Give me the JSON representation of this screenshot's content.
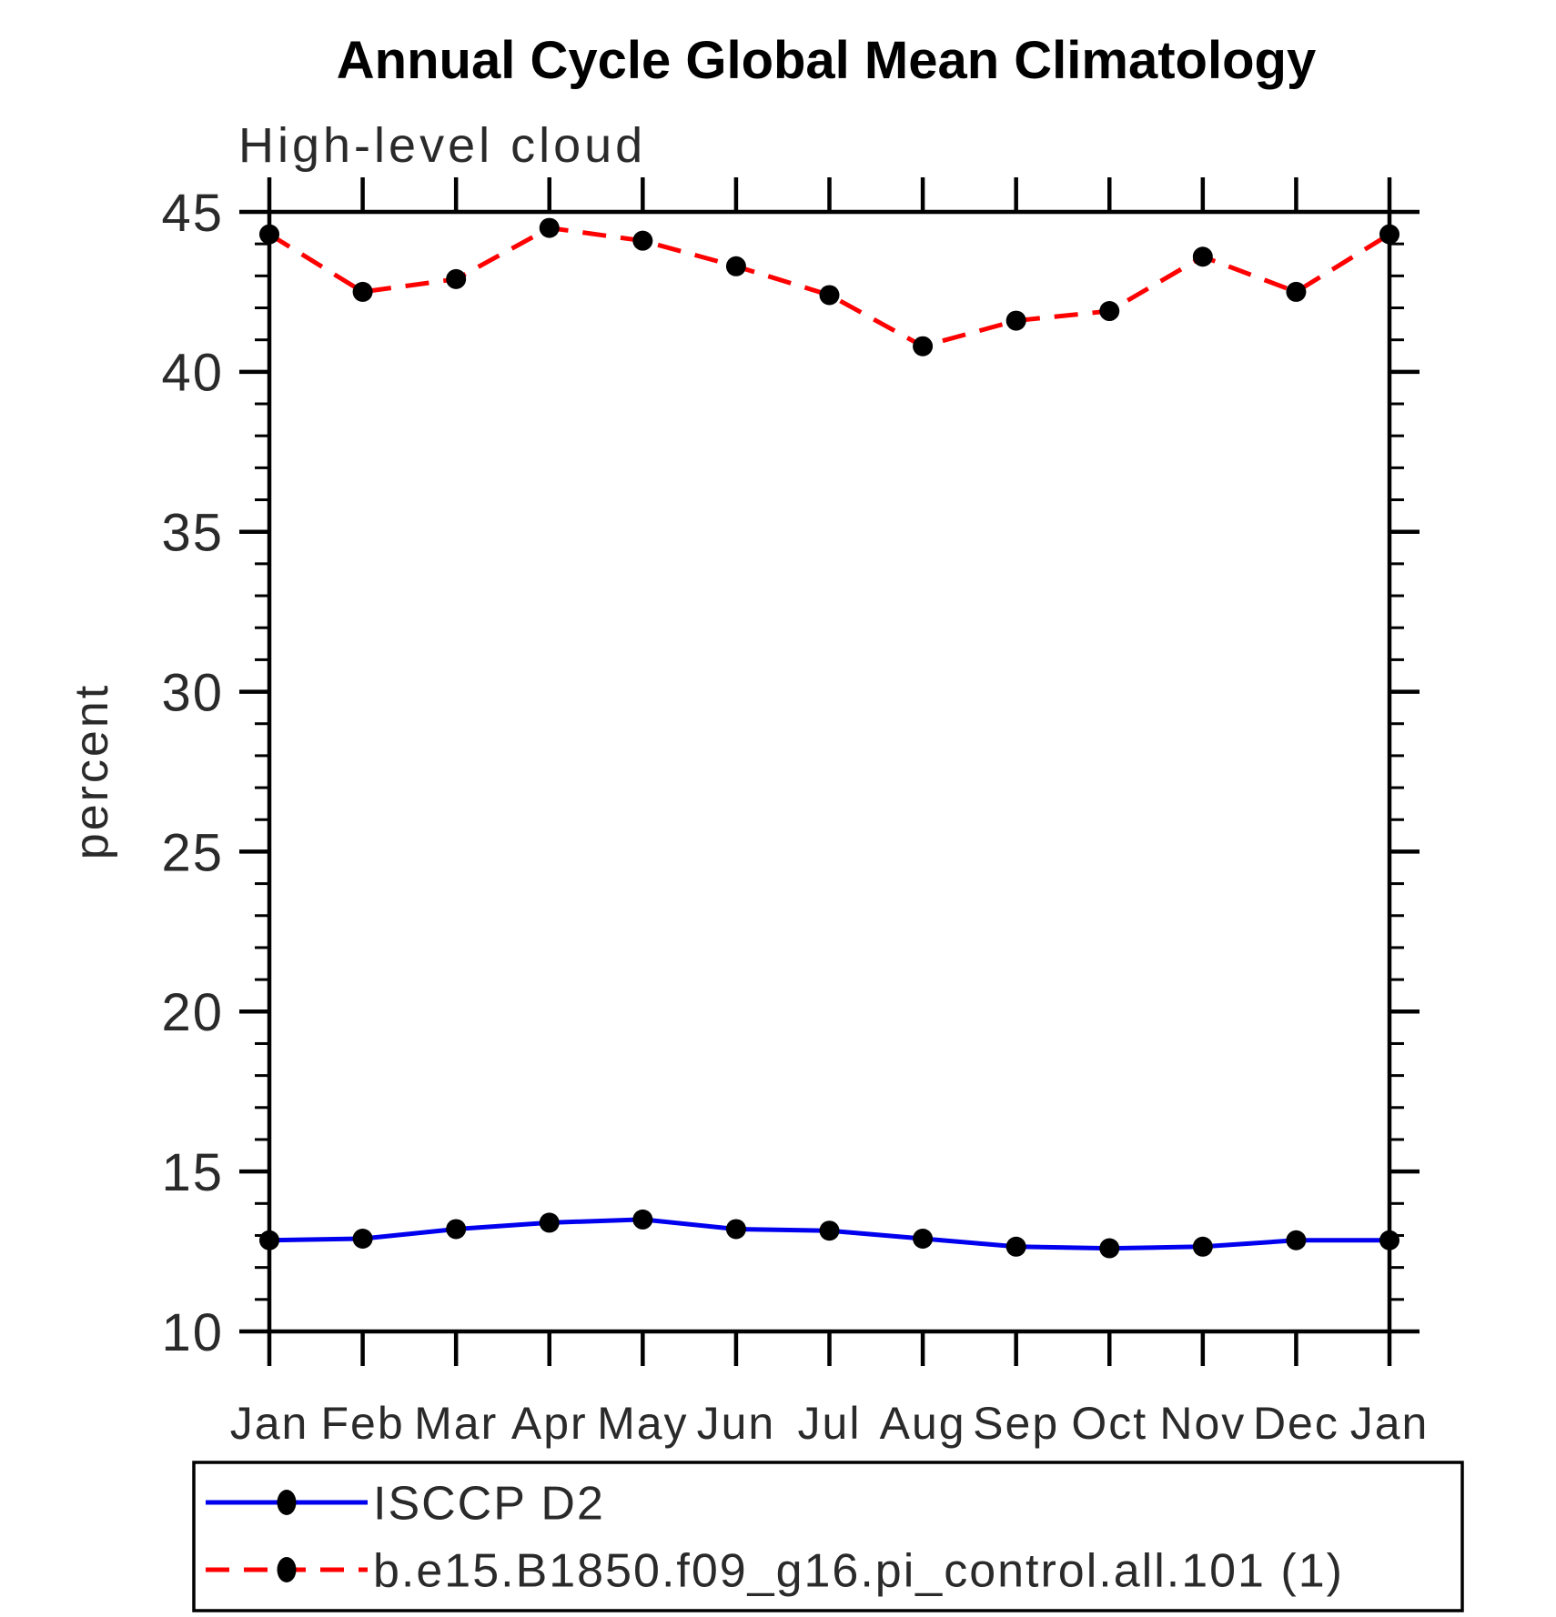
{
  "chart_data": {
    "type": "line",
    "title": "Annual Cycle Global Mean Climatology",
    "subtitle": "High-level cloud",
    "ylabel": "percent",
    "categories": [
      "Jan",
      "Feb",
      "Mar",
      "Apr",
      "May",
      "Jun",
      "Jul",
      "Aug",
      "Sep",
      "Oct",
      "Nov",
      "Dec",
      "Jan"
    ],
    "ylim": [
      10,
      45
    ],
    "yticks_major": [
      10,
      15,
      20,
      25,
      30,
      35,
      40,
      45
    ],
    "ytick_minor_step": 1,
    "grid": false,
    "legend_position": "bottom-left-box",
    "frame_color": "#000000",
    "marker": "filled-circle",
    "marker_color": "#000000",
    "series": [
      {
        "name": "ISCCP D2",
        "color": "#0000ee",
        "line_style": "solid",
        "values": [
          12.85,
          12.9,
          13.2,
          13.4,
          13.5,
          13.2,
          13.15,
          12.9,
          12.65,
          12.6,
          12.65,
          12.85,
          12.85
        ]
      },
      {
        "name": "b.e15.B1850.f09_g16.pi_control.all.101 (1)",
        "color": "#ff0000",
        "line_style": "dashed",
        "values": [
          44.3,
          42.5,
          42.9,
          44.5,
          44.1,
          43.3,
          42.4,
          40.8,
          41.6,
          41.9,
          43.6,
          42.5,
          44.3
        ]
      }
    ]
  }
}
